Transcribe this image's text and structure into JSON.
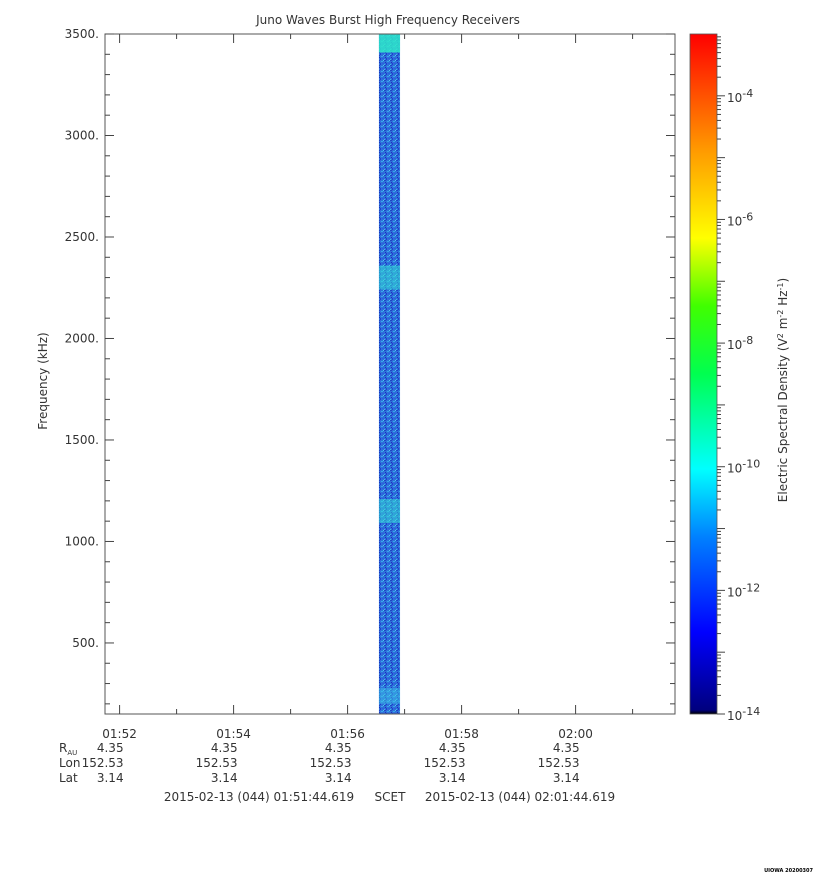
{
  "chart_data": {
    "type": "heatmap",
    "title": "Juno Waves Burst High Frequency Receivers",
    "ylabel": "Frequency (kHz)",
    "ylim": [
      150,
      3500
    ],
    "y_scale": "linear",
    "y_ticks": [
      "500.",
      "1000.",
      "1500.",
      "2000.",
      "2500.",
      "3000.",
      "3500."
    ],
    "y_tick_values": [
      500,
      1000,
      1500,
      2000,
      2500,
      3000,
      3500
    ],
    "x_ticks": [
      "01:52",
      "01:54",
      "01:56",
      "01:58",
      "02:00"
    ],
    "x_tick_minutes": [
      112,
      114,
      116,
      118,
      120
    ],
    "xlim_minutes": [
      111.744,
      121.744
    ],
    "data_interval_minutes": [
      116.55,
      116.92
    ],
    "colorbar": {
      "label_text": "Electric Spectral Density (V",
      "label_sup1": "2",
      "label_mid": " m",
      "label_sup2": "-2",
      "label_mid2": " Hz",
      "label_sup3": "-1",
      "label_end": ")",
      "scale": "log",
      "range_exp": [
        -14,
        -3
      ],
      "ticks": [
        {
          "base": "10",
          "exp": "-4",
          "value_exp": -4
        },
        {
          "base": "10",
          "exp": "-6",
          "value_exp": -6
        },
        {
          "base": "10",
          "exp": "-8",
          "value_exp": -8
        },
        {
          "base": "10",
          "exp": "-10",
          "value_exp": -10
        },
        {
          "base": "10",
          "exp": "-12",
          "value_exp": -12
        },
        {
          "base": "10",
          "exp": "-14",
          "value_exp": -14
        }
      ]
    },
    "ephemeris": {
      "rows": [
        {
          "label": "R",
          "label_sub": "AU",
          "values": [
            "4.35",
            "4.35",
            "4.35",
            "4.35",
            "4.35"
          ]
        },
        {
          "label": "Lon",
          "label_sub": "",
          "values": [
            "152.53",
            "152.53",
            "152.53",
            "152.53",
            "152.53"
          ]
        },
        {
          "label": "Lat",
          "label_sub": "",
          "values": [
            "3.14",
            "3.14",
            "3.14",
            "3.14",
            "3.14"
          ]
        }
      ]
    },
    "time_range": {
      "start": "2015-02-13 (044) 01:51:44.619",
      "frame": "SCET",
      "end": "2015-02-13 (044) 02:01:44.619"
    },
    "stamp": "UIOWA 20200307"
  }
}
